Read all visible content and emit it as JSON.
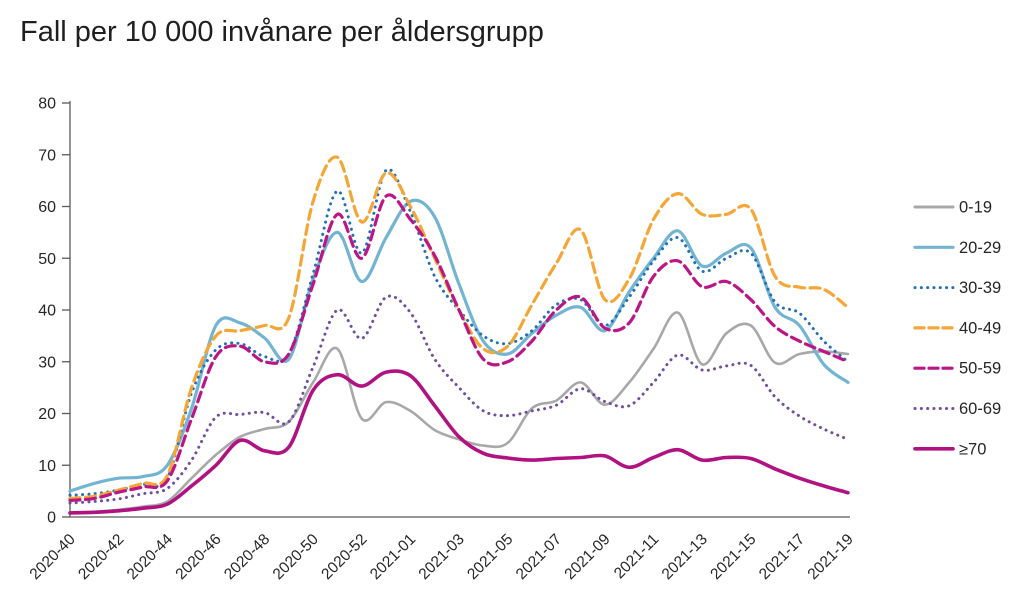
{
  "chart_data": {
    "type": "line",
    "title": "Fall per 10 000 invånare per åldersgrupp",
    "xlabel": "",
    "ylabel": "",
    "ylim": [
      0,
      80
    ],
    "y_ticks": [
      0,
      10,
      20,
      30,
      40,
      50,
      60,
      70,
      80
    ],
    "grid": false,
    "legend_position": "right",
    "x_label_every": 2,
    "axis_color": "#595959",
    "x": [
      "2020-40",
      "2020-41",
      "2020-42",
      "2020-43",
      "2020-44",
      "2020-45",
      "2020-46",
      "2020-47",
      "2020-48",
      "2020-49",
      "2020-50",
      "2020-51",
      "2020-52",
      "2020-53",
      "2021-01",
      "2021-02",
      "2021-03",
      "2021-04",
      "2021-05",
      "2021-06",
      "2021-07",
      "2021-08",
      "2021-09",
      "2021-10",
      "2021-11",
      "2021-12",
      "2021-13",
      "2021-14",
      "2021-15",
      "2021-16",
      "2021-17",
      "2021-18",
      "2021-19"
    ],
    "series": [
      {
        "name": "0-19",
        "color": "#a8a8a8",
        "style": "solid",
        "width": 2.6,
        "values": [
          0.9,
          1.0,
          1.4,
          2.0,
          3.0,
          7.5,
          12,
          15.5,
          17,
          18.4,
          26,
          32.5,
          19,
          22.2,
          20.5,
          16.8,
          15,
          13.8,
          14.3,
          21,
          22.5,
          26,
          21.7,
          26,
          32.5,
          39.5,
          29.5,
          35.5,
          37,
          29.8,
          31.5,
          32,
          31.5
        ]
      },
      {
        "name": "20-29",
        "color": "#72b4d2",
        "style": "solid",
        "width": 3.2,
        "values": [
          5,
          6.5,
          7.5,
          7.8,
          10,
          21,
          37,
          37.5,
          34.6,
          30.5,
          46,
          55,
          45.5,
          54,
          61,
          58,
          45,
          34,
          31.5,
          35.5,
          39,
          40.5,
          36,
          43.5,
          50,
          55.3,
          48.5,
          51,
          52,
          40.5,
          37,
          29.5,
          26
        ]
      },
      {
        "name": "30-39",
        "color": "#2470b3",
        "style": "dotted",
        "width": 3,
        "values": [
          4.2,
          4.5,
          5.2,
          6.3,
          7.5,
          24,
          32.3,
          33.5,
          31,
          31.5,
          47,
          63,
          51,
          67,
          59,
          46.5,
          40,
          35,
          33.5,
          36,
          41,
          42,
          37,
          42.5,
          49.5,
          54,
          47.5,
          50,
          51,
          41.5,
          39.4,
          34,
          30
        ]
      },
      {
        "name": "40-49",
        "color": "#f4a636",
        "style": "dashed",
        "width": 3.2,
        "values": [
          3.6,
          4,
          5.2,
          6.5,
          8,
          25,
          35,
          36,
          37,
          38.5,
          61,
          69.5,
          57,
          66.5,
          60,
          50,
          40,
          32.5,
          33,
          41,
          49,
          55.5,
          42,
          46,
          57.5,
          62.5,
          58.5,
          58.5,
          59.5,
          46.5,
          44.4,
          44,
          40.5
        ]
      },
      {
        "name": "50-59",
        "color": "#bb1686",
        "style": "dashed",
        "width": 3.2,
        "values": [
          3.2,
          3.6,
          4.8,
          5.8,
          7,
          19,
          31,
          33,
          30,
          31.5,
          45,
          58.5,
          50,
          62,
          57.5,
          50.5,
          40,
          30.5,
          30,
          34,
          40,
          42.5,
          36.5,
          37.5,
          46.5,
          49.5,
          44.5,
          45.5,
          42,
          36.8,
          34,
          32,
          30
        ]
      },
      {
        "name": "60-69",
        "color": "#6f4f9e",
        "style": "dotted",
        "width": 3,
        "values": [
          2.7,
          3,
          3.5,
          4.5,
          5.5,
          11,
          19.3,
          19.8,
          20.2,
          18.4,
          29,
          40,
          34.5,
          42.5,
          39.5,
          30.5,
          25,
          20.5,
          19.6,
          20.5,
          21.6,
          24.8,
          22.3,
          21.5,
          26,
          31.3,
          28.4,
          29.2,
          29.3,
          23.2,
          19.5,
          17,
          15
        ]
      },
      {
        "name": "≥70",
        "color": "#b01381",
        "style": "solid",
        "width": 3.6,
        "values": [
          0.8,
          0.9,
          1.2,
          1.7,
          2.5,
          6,
          10,
          14.8,
          12.8,
          13.5,
          24.5,
          27.5,
          25.3,
          28,
          27.3,
          21.5,
          15.5,
          12.3,
          11.4,
          11,
          11.3,
          11.5,
          11.8,
          9.6,
          11.5,
          13,
          11,
          11.5,
          11.3,
          9.3,
          7.5,
          6,
          4.7
        ]
      }
    ]
  }
}
